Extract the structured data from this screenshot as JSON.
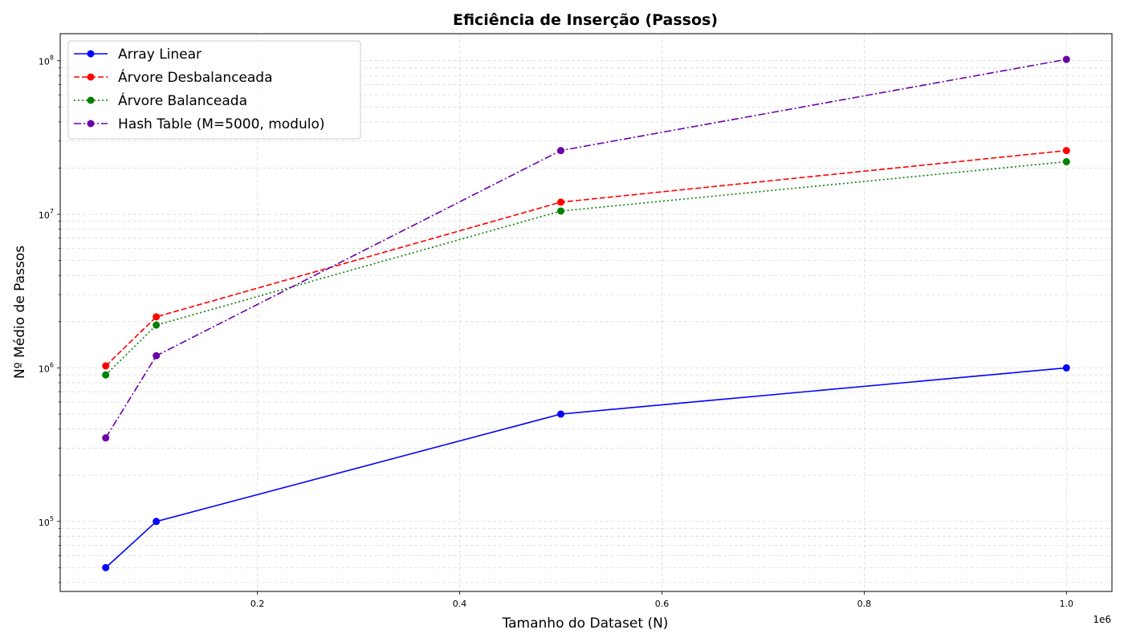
{
  "chart_data": {
    "type": "line",
    "title": "Eficiência de Inserção (Passos)",
    "xlabel": "Tamanho do Dataset (N)",
    "ylabel": "Nº Médio de Passos",
    "x_offset_label": "1e6",
    "x_scale": "linear",
    "y_scale": "log",
    "xlim": [
      5000,
      1045000
    ],
    "ylim": [
      35000,
      150000000
    ],
    "x_ticks": [
      200000,
      400000,
      600000,
      800000,
      1000000
    ],
    "x_tick_labels": [
      "0.2",
      "0.4",
      "0.6",
      "0.8",
      "1.0"
    ],
    "y_ticks": [
      100000,
      1000000,
      10000000,
      100000000
    ],
    "y_tick_labels": [
      {
        "base": "10",
        "exp": "5"
      },
      {
        "base": "10",
        "exp": "6"
      },
      {
        "base": "10",
        "exp": "7"
      },
      {
        "base": "10",
        "exp": "8"
      }
    ],
    "grid": true,
    "legend_position": "top-left",
    "x": [
      50000,
      100000,
      500000,
      1000000
    ],
    "series": [
      {
        "name": "Array Linear",
        "values": [
          50000,
          100000,
          500000,
          1000000
        ],
        "color": "#0000ff",
        "linestyle": "solid",
        "marker": "circle"
      },
      {
        "name": "Árvore Desbalanceada",
        "values": [
          1030000,
          2150000,
          12000000,
          26000000
        ],
        "color": "#ff0000",
        "linestyle": "dashed",
        "marker": "circle"
      },
      {
        "name": "Árvore Balanceada",
        "values": [
          900000,
          1900000,
          10500000,
          22000000
        ],
        "color": "#008000",
        "linestyle": "dotted",
        "marker": "circle"
      },
      {
        "name": "Hash Table (M=5000, modulo)",
        "values": [
          350000,
          1200000,
          26000000,
          102000000
        ],
        "color": "#6a00a8",
        "linestyle": "dashdot",
        "marker": "circle"
      }
    ]
  }
}
